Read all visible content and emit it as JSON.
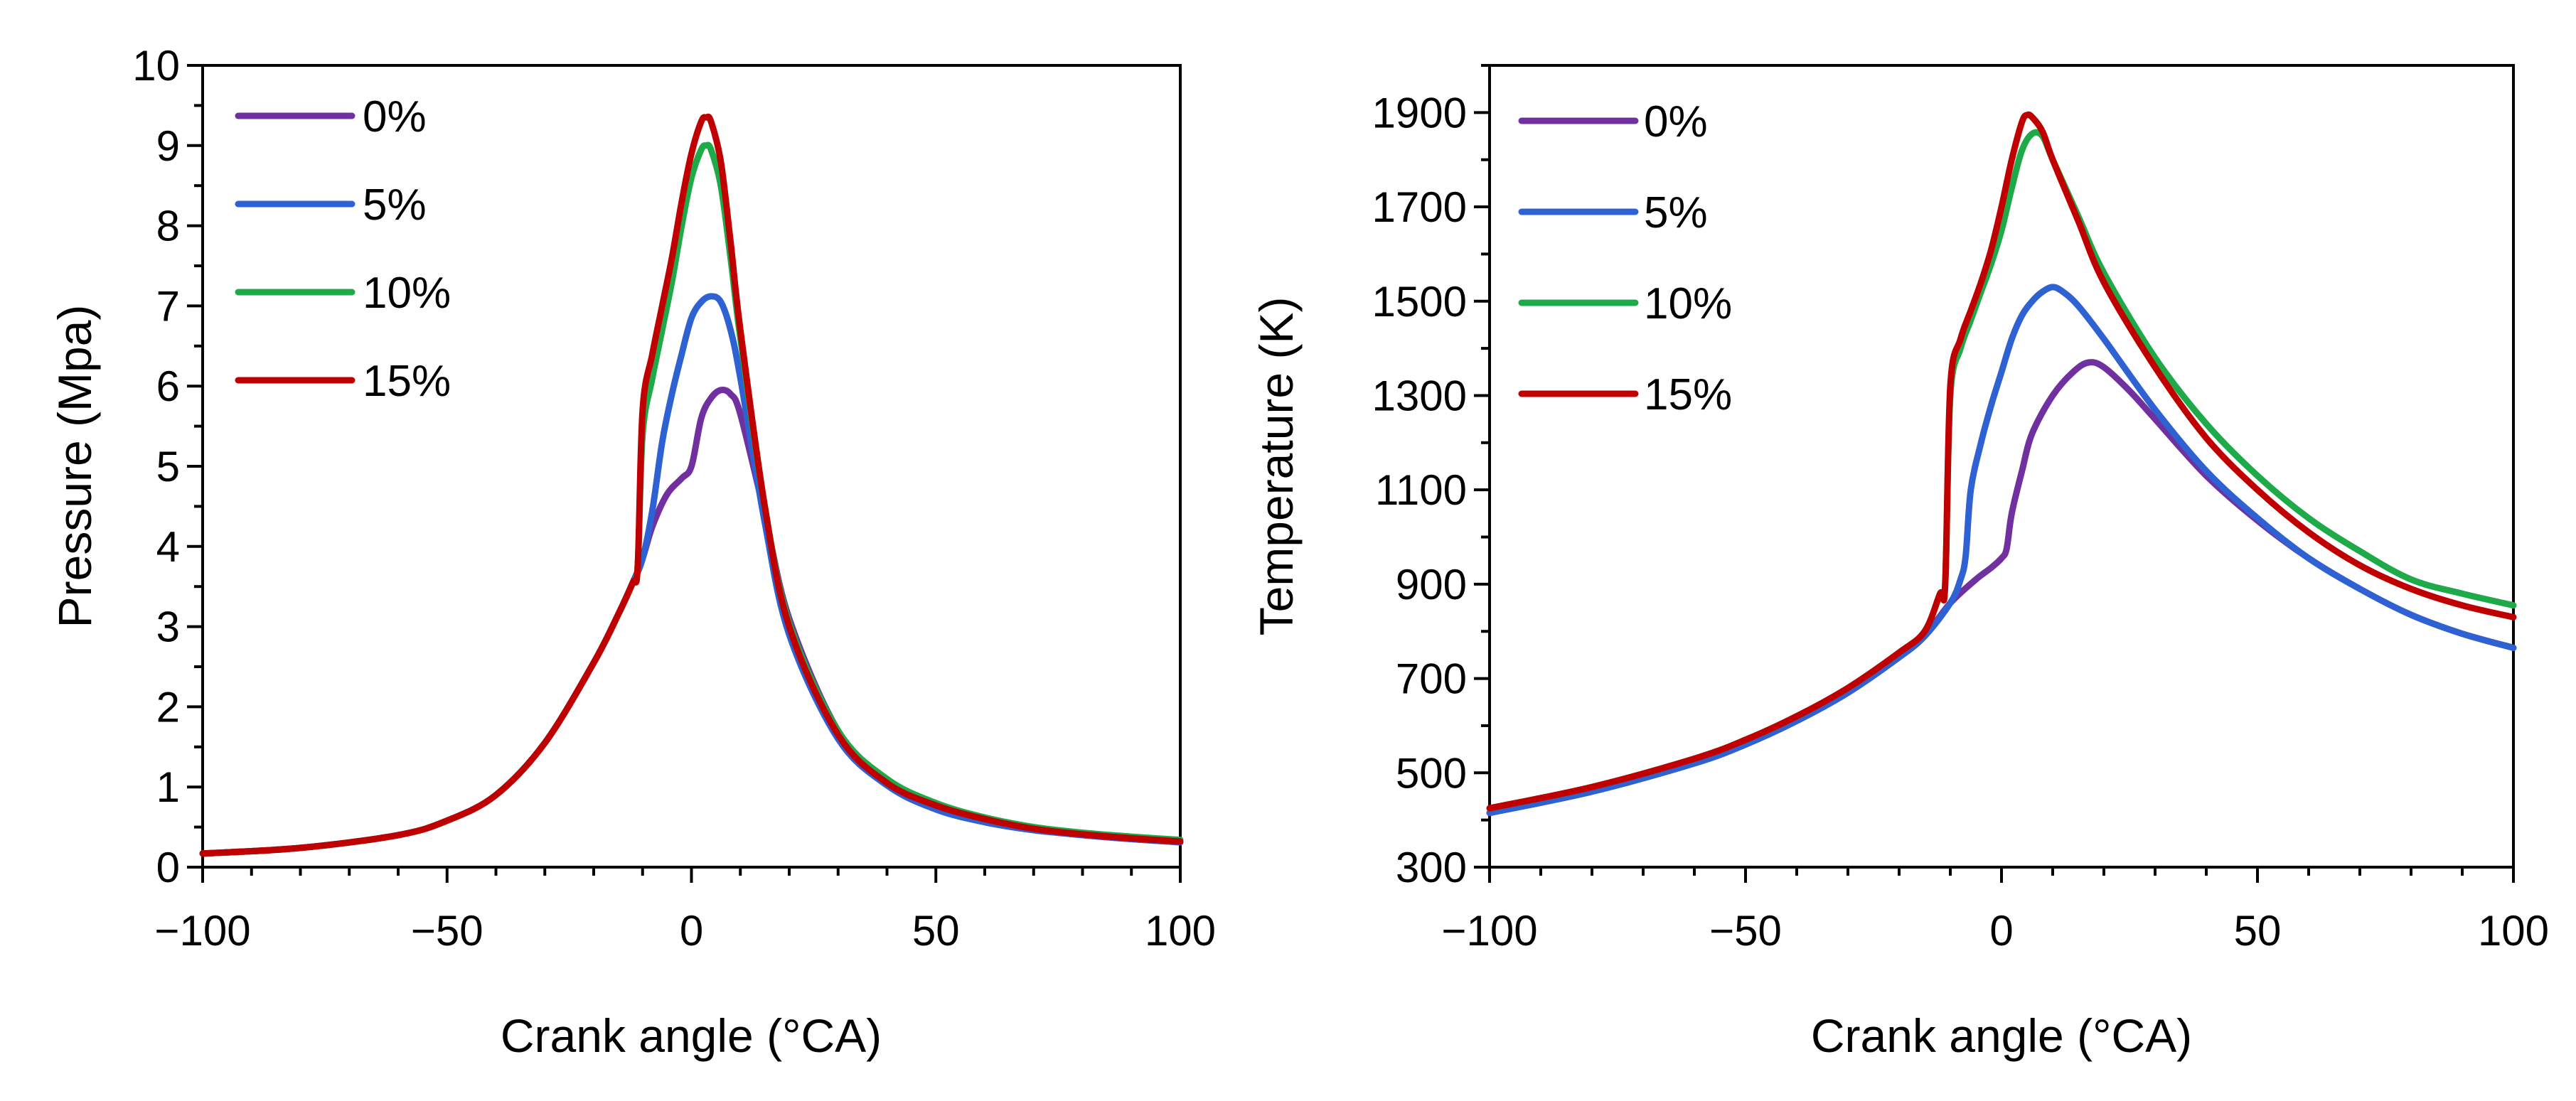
{
  "chart_data": [
    {
      "type": "line",
      "xlabel": "Crank angle (°CA)",
      "ylabel": "Pressure (Mpa)",
      "xlim": [
        -100,
        100
      ],
      "ylim": [
        0,
        10
      ],
      "xticks": [
        -100,
        -50,
        0,
        50,
        100
      ],
      "xtick_labels": [
        "−100",
        "−50",
        "0",
        "50",
        "100"
      ],
      "yticks": [
        0,
        1,
        2,
        3,
        4,
        5,
        6,
        7,
        8,
        9,
        10
      ],
      "ytick_labels": [
        "0",
        "1",
        "2",
        "3",
        "4",
        "5",
        "6",
        "7",
        "8",
        "9",
        "10"
      ],
      "legend_position": "top-left",
      "series": [
        {
          "name": "0%",
          "color": "#7030a0",
          "x": [
            -100,
            -80,
            -60,
            -50,
            -40,
            -30,
            -20,
            -15,
            -12,
            -10,
            -8,
            -5,
            -2,
            0,
            2,
            4,
            6,
            8,
            10,
            15,
            20,
            30,
            40,
            50,
            60,
            70,
            80,
            90,
            100
          ],
          "y": [
            0.17,
            0.24,
            0.4,
            0.58,
            0.9,
            1.55,
            2.55,
            3.15,
            3.55,
            3.85,
            4.25,
            4.65,
            4.85,
            5.0,
            5.6,
            5.85,
            5.95,
            5.9,
            5.65,
            4.4,
            3.1,
            1.7,
            1.05,
            0.75,
            0.57,
            0.47,
            0.4,
            0.35,
            0.31
          ]
        },
        {
          "name": "5%",
          "color": "#2e62d3",
          "x": [
            -100,
            -80,
            -60,
            -50,
            -40,
            -30,
            -20,
            -15,
            -12,
            -10,
            -8,
            -6,
            -4,
            -2,
            0,
            2,
            4,
            6,
            8,
            10,
            15,
            20,
            30,
            40,
            50,
            60,
            70,
            80,
            90,
            100
          ],
          "y": [
            0.17,
            0.24,
            0.4,
            0.58,
            0.9,
            1.55,
            2.55,
            3.15,
            3.55,
            3.85,
            4.45,
            5.3,
            5.9,
            6.4,
            6.85,
            7.05,
            7.12,
            7.05,
            6.7,
            6.1,
            4.3,
            2.9,
            1.6,
            1.02,
            0.72,
            0.56,
            0.46,
            0.4,
            0.35,
            0.31
          ]
        },
        {
          "name": "10%",
          "color": "#1faa4a",
          "x": [
            -100,
            -80,
            -60,
            -50,
            -40,
            -30,
            -20,
            -15,
            -12,
            -11,
            -10,
            -8,
            -6,
            -4,
            -2,
            0,
            2,
            3,
            4,
            6,
            8,
            10,
            15,
            20,
            30,
            40,
            50,
            60,
            70,
            80,
            90,
            100
          ],
          "y": [
            0.17,
            0.24,
            0.4,
            0.58,
            0.9,
            1.55,
            2.55,
            3.15,
            3.55,
            3.75,
            5.4,
            6.1,
            6.7,
            7.3,
            8.0,
            8.6,
            8.95,
            9.0,
            8.95,
            8.5,
            7.6,
            6.6,
            4.5,
            3.05,
            1.7,
            1.1,
            0.8,
            0.62,
            0.5,
            0.43,
            0.38,
            0.34
          ]
        },
        {
          "name": "15%",
          "color": "#c00000",
          "x": [
            -100,
            -80,
            -60,
            -50,
            -40,
            -30,
            -20,
            -15,
            -12,
            -11,
            -10,
            -8,
            -6,
            -4,
            -2,
            0,
            2,
            3,
            4,
            6,
            8,
            10,
            15,
            20,
            30,
            40,
            50,
            60,
            70,
            80,
            90,
            100
          ],
          "y": [
            0.17,
            0.24,
            0.4,
            0.58,
            0.9,
            1.55,
            2.55,
            3.15,
            3.55,
            3.75,
            5.7,
            6.4,
            7.0,
            7.6,
            8.3,
            8.9,
            9.3,
            9.35,
            9.3,
            8.8,
            7.8,
            6.7,
            4.5,
            3.0,
            1.65,
            1.05,
            0.77,
            0.6,
            0.48,
            0.41,
            0.36,
            0.32
          ]
        }
      ]
    },
    {
      "type": "line",
      "xlabel": "Crank angle (°CA)",
      "ylabel": "Temperature (K)",
      "xlim": [
        -100,
        100
      ],
      "ylim": [
        300,
        2000
      ],
      "xticks": [
        -100,
        -50,
        0,
        50,
        100
      ],
      "xtick_labels": [
        "−100",
        "−50",
        "0",
        "50",
        "100"
      ],
      "yticks": [
        300,
        500,
        700,
        900,
        1100,
        1300,
        1500,
        1700,
        1900
      ],
      "ytick_labels": [
        "300",
        "500",
        "700",
        "900",
        "1100",
        "1300",
        "1500",
        "1700",
        "1900"
      ],
      "legend_position": "top-left",
      "series": [
        {
          "name": "0%",
          "color": "#7030a0",
          "x": [
            -100,
            -80,
            -60,
            -50,
            -40,
            -30,
            -20,
            -15,
            -10,
            -5,
            -2,
            0,
            1,
            2,
            4,
            6,
            10,
            14,
            17,
            20,
            25,
            30,
            40,
            50,
            60,
            70,
            80,
            90,
            100
          ],
          "y": [
            415,
            460,
            520,
            560,
            610,
            670,
            745,
            790,
            860,
            910,
            935,
            955,
            975,
            1050,
            1140,
            1220,
            1300,
            1350,
            1370,
            1360,
            1310,
            1250,
            1130,
            1035,
            955,
            890,
            835,
            795,
            765
          ]
        },
        {
          "name": "5%",
          "color": "#2e62d3",
          "x": [
            -100,
            -80,
            -60,
            -50,
            -40,
            -30,
            -20,
            -15,
            -10,
            -8,
            -7,
            -6,
            -4,
            -2,
            0,
            2,
            4,
            6,
            8,
            10,
            12,
            15,
            20,
            30,
            40,
            50,
            60,
            70,
            80,
            90,
            100
          ],
          "y": [
            415,
            460,
            520,
            560,
            610,
            670,
            745,
            790,
            860,
            910,
            960,
            1100,
            1200,
            1280,
            1350,
            1420,
            1470,
            1500,
            1520,
            1530,
            1520,
            1490,
            1420,
            1270,
            1140,
            1040,
            955,
            890,
            835,
            795,
            765
          ]
        },
        {
          "name": "10%",
          "color": "#1faa4a",
          "x": [
            -100,
            -80,
            -60,
            -50,
            -40,
            -30,
            -20,
            -15,
            -12,
            -11,
            -10,
            -8,
            -6,
            -4,
            -2,
            0,
            2,
            4,
            6,
            8,
            10,
            15,
            20,
            30,
            40,
            50,
            60,
            70,
            80,
            90,
            100
          ],
          "y": [
            425,
            470,
            530,
            570,
            620,
            680,
            755,
            800,
            880,
            900,
            1300,
            1400,
            1460,
            1520,
            1580,
            1650,
            1740,
            1820,
            1855,
            1850,
            1800,
            1680,
            1560,
            1380,
            1240,
            1130,
            1040,
            970,
            910,
            880,
            855
          ]
        },
        {
          "name": "15%",
          "color": "#c00000",
          "x": [
            -100,
            -80,
            -60,
            -50,
            -40,
            -30,
            -20,
            -15,
            -12,
            -11,
            -10,
            -8,
            -6,
            -4,
            -2,
            0,
            2,
            4,
            5,
            6,
            8,
            10,
            15,
            20,
            30,
            40,
            50,
            60,
            70,
            80,
            90,
            100
          ],
          "y": [
            425,
            470,
            530,
            570,
            620,
            680,
            755,
            800,
            880,
            900,
            1320,
            1420,
            1480,
            1540,
            1610,
            1700,
            1800,
            1880,
            1895,
            1890,
            1860,
            1800,
            1670,
            1540,
            1360,
            1210,
            1100,
            1010,
            940,
            890,
            855,
            830
          ]
        }
      ]
    }
  ]
}
